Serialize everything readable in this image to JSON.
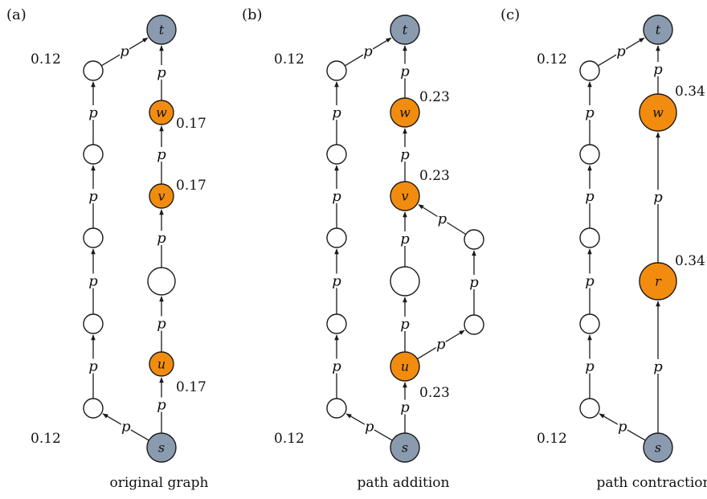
{
  "colors": {
    "terminal": "#8a9bb0",
    "highlight": "#f28c0f",
    "plain": "#ffffff",
    "stroke": "#1a1a1a"
  },
  "panels": [
    {
      "id": "a",
      "tag": "(a)",
      "caption": "original graph",
      "nodes": [
        {
          "id": "t",
          "label": "t",
          "kind": "terminal"
        },
        {
          "id": "l1",
          "label": "",
          "kind": "plain",
          "value": "0.12"
        },
        {
          "id": "w",
          "label": "w",
          "kind": "highlight",
          "value": "0.17"
        },
        {
          "id": "l2",
          "label": "",
          "kind": "plain"
        },
        {
          "id": "v",
          "label": "v",
          "kind": "highlight",
          "value": "0.17"
        },
        {
          "id": "l3",
          "label": "",
          "kind": "plain"
        },
        {
          "id": "m",
          "label": "",
          "kind": "plain"
        },
        {
          "id": "l4",
          "label": "",
          "kind": "plain"
        },
        {
          "id": "u",
          "label": "u",
          "kind": "highlight",
          "value": "0.17"
        },
        {
          "id": "l5",
          "label": "",
          "kind": "plain",
          "value": "0.12"
        },
        {
          "id": "s",
          "label": "s",
          "kind": "terminal"
        }
      ],
      "edges": [
        {
          "from": "s",
          "to": "l5",
          "label": "p"
        },
        {
          "from": "l5",
          "to": "l4",
          "label": "p"
        },
        {
          "from": "l4",
          "to": "l3",
          "label": "p"
        },
        {
          "from": "l3",
          "to": "l2",
          "label": "p"
        },
        {
          "from": "l2",
          "to": "l1",
          "label": "p"
        },
        {
          "from": "l1",
          "to": "t",
          "label": "p"
        },
        {
          "from": "s",
          "to": "u",
          "label": "p"
        },
        {
          "from": "u",
          "to": "m",
          "label": "p"
        },
        {
          "from": "m",
          "to": "v",
          "label": "p"
        },
        {
          "from": "v",
          "to": "w",
          "label": "p"
        },
        {
          "from": "w",
          "to": "t",
          "label": "p"
        }
      ]
    },
    {
      "id": "b",
      "tag": "(b)",
      "caption": "path addition",
      "nodes": [
        {
          "id": "t",
          "label": "t",
          "kind": "terminal"
        },
        {
          "id": "l1",
          "label": "",
          "kind": "plain",
          "value": "0.12"
        },
        {
          "id": "w",
          "label": "w",
          "kind": "highlight",
          "value": "0.23"
        },
        {
          "id": "l2",
          "label": "",
          "kind": "plain"
        },
        {
          "id": "v",
          "label": "v",
          "kind": "highlight",
          "value": "0.23"
        },
        {
          "id": "l3",
          "label": "",
          "kind": "plain"
        },
        {
          "id": "r1",
          "label": "",
          "kind": "plain"
        },
        {
          "id": "m",
          "label": "",
          "kind": "plain"
        },
        {
          "id": "l4",
          "label": "",
          "kind": "plain"
        },
        {
          "id": "r2",
          "label": "",
          "kind": "plain"
        },
        {
          "id": "u",
          "label": "u",
          "kind": "highlight",
          "value": "0.23"
        },
        {
          "id": "l5",
          "label": "",
          "kind": "plain",
          "value": "0.12"
        },
        {
          "id": "s",
          "label": "s",
          "kind": "terminal"
        }
      ],
      "edges": [
        {
          "from": "s",
          "to": "l5",
          "label": "p"
        },
        {
          "from": "l5",
          "to": "l4",
          "label": "p"
        },
        {
          "from": "l4",
          "to": "l3",
          "label": "p"
        },
        {
          "from": "l3",
          "to": "l2",
          "label": "p"
        },
        {
          "from": "l2",
          "to": "l1",
          "label": "p"
        },
        {
          "from": "l1",
          "to": "t",
          "label": "p"
        },
        {
          "from": "s",
          "to": "u",
          "label": "p"
        },
        {
          "from": "u",
          "to": "m",
          "label": "p"
        },
        {
          "from": "m",
          "to": "v",
          "label": "p"
        },
        {
          "from": "v",
          "to": "w",
          "label": "p"
        },
        {
          "from": "w",
          "to": "t",
          "label": "p"
        },
        {
          "from": "u",
          "to": "r2",
          "label": "p"
        },
        {
          "from": "r2",
          "to": "r1",
          "label": "p"
        },
        {
          "from": "r1",
          "to": "v",
          "label": "p"
        }
      ]
    },
    {
      "id": "c",
      "tag": "(c)",
      "caption": "path contraction",
      "nodes": [
        {
          "id": "t",
          "label": "t",
          "kind": "terminal"
        },
        {
          "id": "l1",
          "label": "",
          "kind": "plain",
          "value": "0.12"
        },
        {
          "id": "w",
          "label": "w",
          "kind": "highlight",
          "value": "0.34"
        },
        {
          "id": "l2",
          "label": "",
          "kind": "plain"
        },
        {
          "id": "l3",
          "label": "",
          "kind": "plain"
        },
        {
          "id": "r",
          "label": "r",
          "kind": "highlight",
          "value": "0.34"
        },
        {
          "id": "l4",
          "label": "",
          "kind": "plain"
        },
        {
          "id": "l5",
          "label": "",
          "kind": "plain",
          "value": "0.12"
        },
        {
          "id": "s",
          "label": "s",
          "kind": "terminal"
        }
      ],
      "edges": [
        {
          "from": "s",
          "to": "l5",
          "label": "p"
        },
        {
          "from": "l5",
          "to": "l4",
          "label": "p"
        },
        {
          "from": "l4",
          "to": "l3",
          "label": "p"
        },
        {
          "from": "l3",
          "to": "l2",
          "label": "p"
        },
        {
          "from": "l2",
          "to": "l1",
          "label": "p"
        },
        {
          "from": "l1",
          "to": "t",
          "label": "p"
        },
        {
          "from": "s",
          "to": "r",
          "label": "p"
        },
        {
          "from": "r",
          "to": "w",
          "label": "p"
        },
        {
          "from": "w",
          "to": "t",
          "label": "p"
        }
      ]
    }
  ]
}
